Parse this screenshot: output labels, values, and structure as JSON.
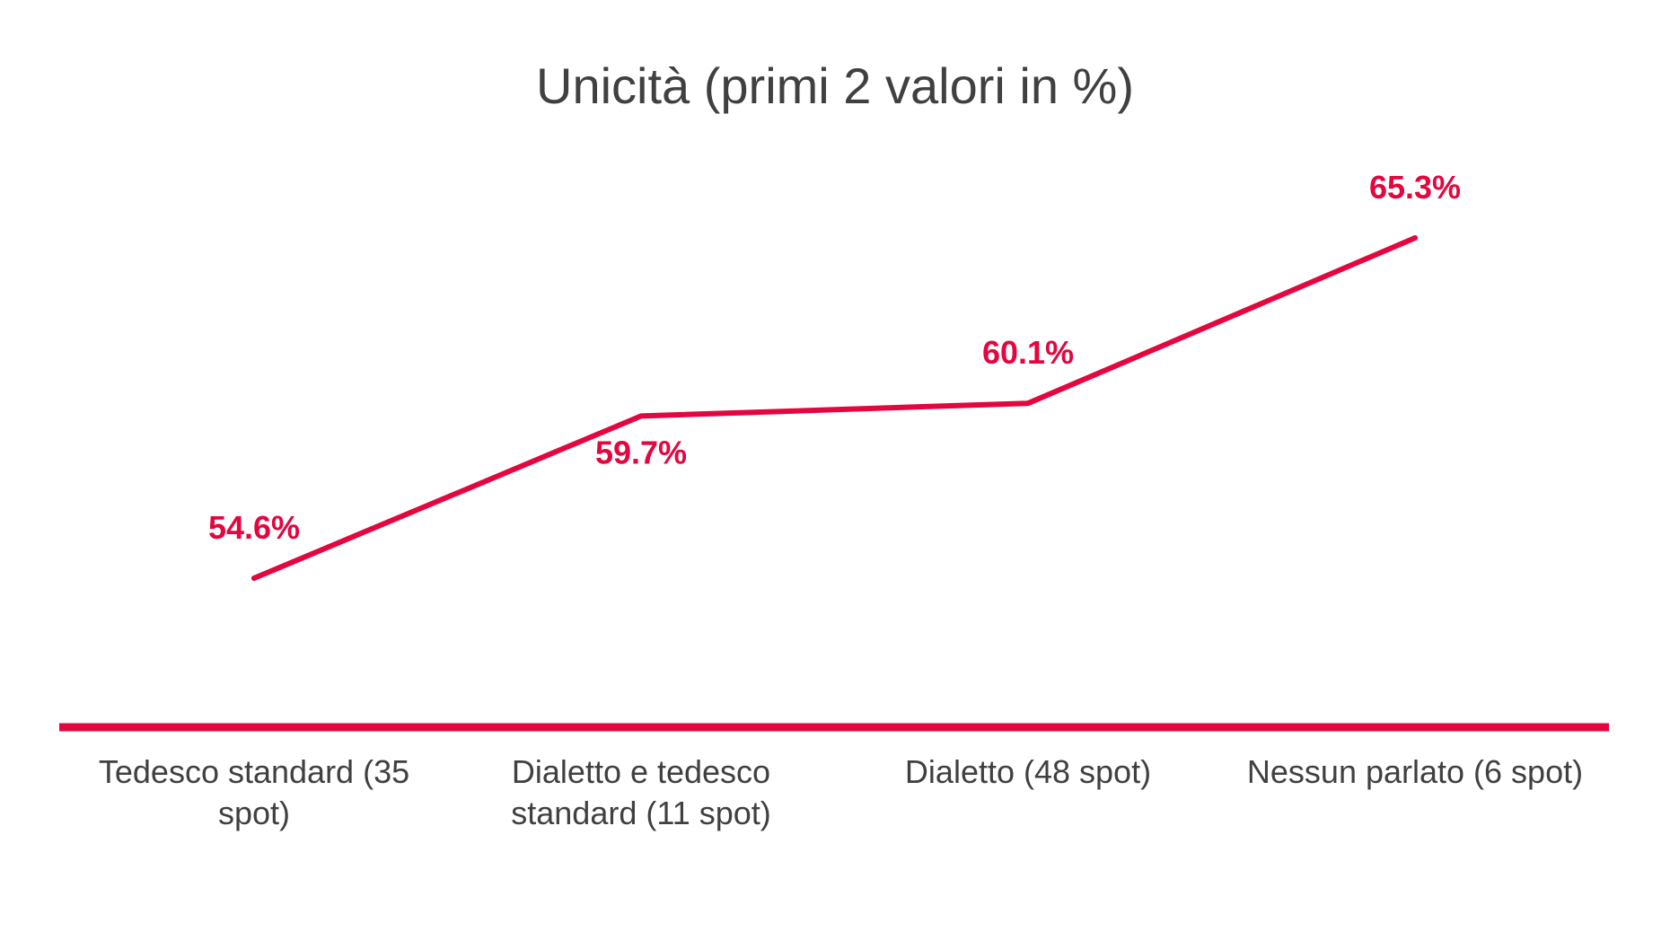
{
  "chart_data": {
    "type": "line",
    "title": "Unicità (primi 2 valori in %)",
    "xlabel": "",
    "ylabel": "",
    "categories": [
      [
        "Tedesco standard (35",
        "spot)"
      ],
      [
        "Dialetto e tedesco",
        "standard (11 spot)"
      ],
      [
        "Dialetto (48 spot)"
      ],
      [
        "Nessun parlato (6 spot)"
      ]
    ],
    "series": [
      {
        "values": [
          54.6,
          59.7,
          60.1,
          65.3
        ],
        "data_labels": [
          "54.6%",
          "59.7%",
          "60.1%",
          "65.3%"
        ],
        "color": "#E3063F"
      }
    ],
    "grid": false,
    "legend": "none",
    "accent_color": "#E3063F",
    "text_color": "#404040"
  }
}
